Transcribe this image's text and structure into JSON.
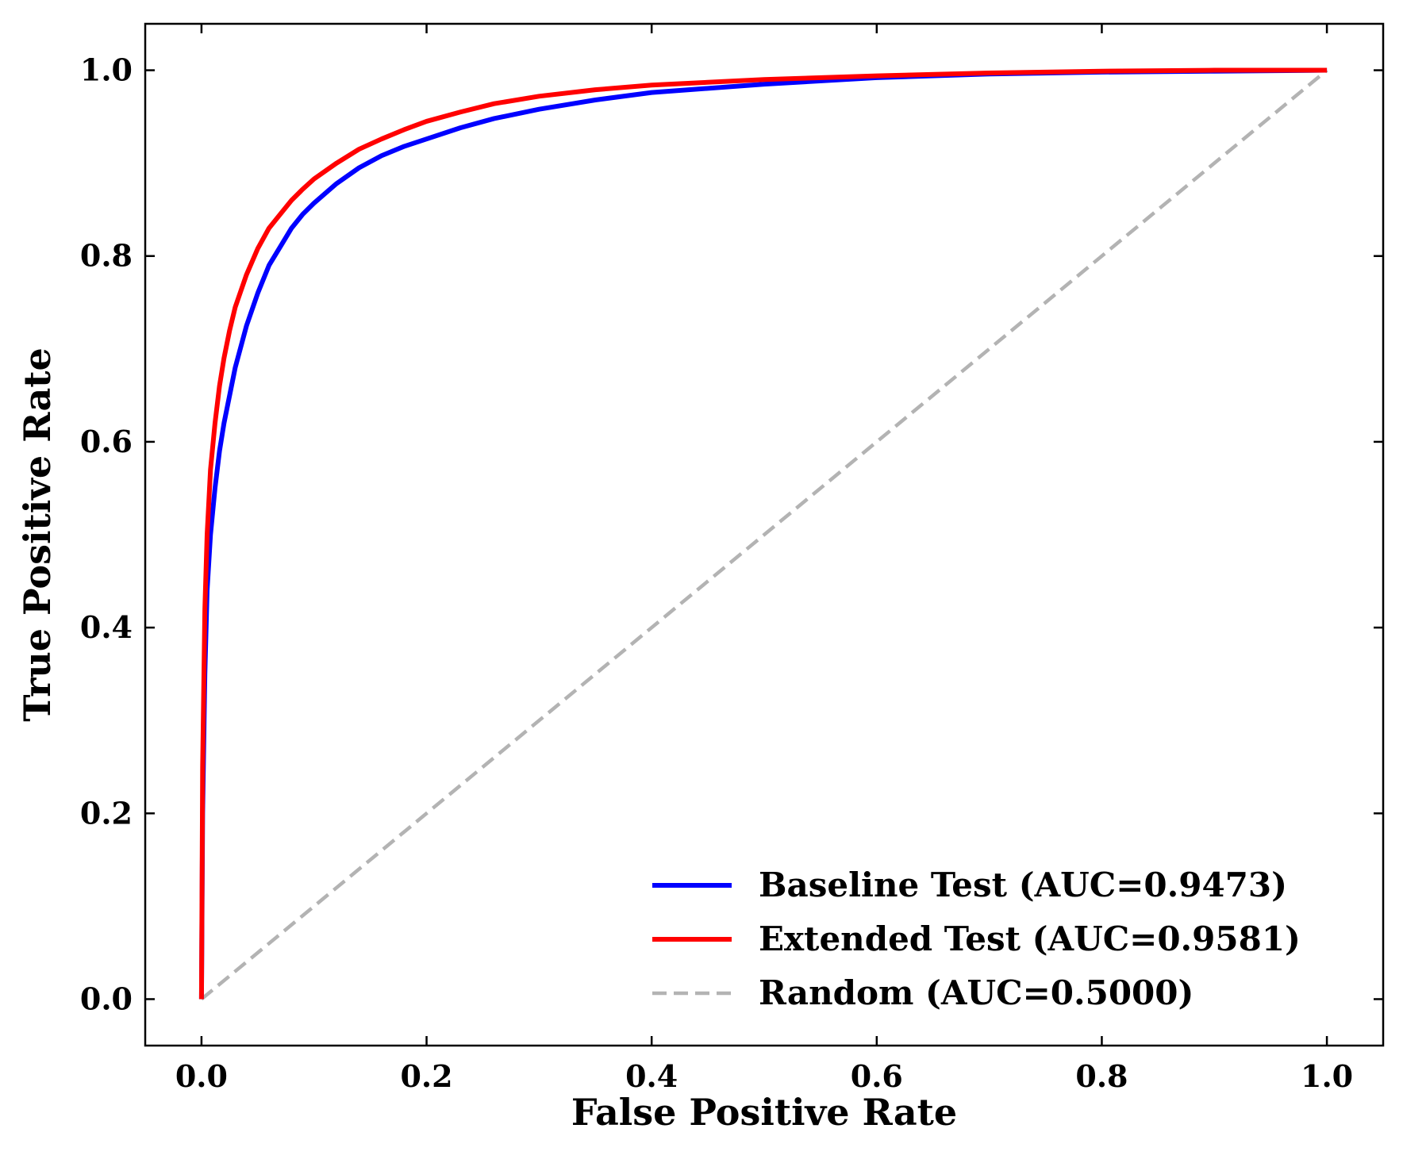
{
  "chart_data": {
    "type": "line",
    "title": "",
    "xlabel": "False Positive Rate",
    "ylabel": "True Positive Rate",
    "xlim": [
      -0.05,
      1.05
    ],
    "ylim": [
      -0.05,
      1.05
    ],
    "xticks": [
      0.0,
      0.2,
      0.4,
      0.6,
      0.8,
      1.0
    ],
    "yticks": [
      0.0,
      0.2,
      0.4,
      0.6,
      0.8,
      1.0
    ],
    "xtick_labels": [
      "0.0",
      "0.2",
      "0.4",
      "0.6",
      "0.8",
      "1.0"
    ],
    "ytick_labels": [
      "0.0",
      "0.2",
      "0.4",
      "0.6",
      "0.8",
      "1.0"
    ],
    "grid": false,
    "legend_position": "lower-right",
    "series": [
      {
        "name": "Baseline Test (AUC=0.9473)",
        "color": "#0000ff",
        "style": "solid",
        "x": [
          0.0,
          0.001,
          0.003,
          0.005,
          0.008,
          0.012,
          0.016,
          0.02,
          0.025,
          0.03,
          0.04,
          0.05,
          0.06,
          0.07,
          0.08,
          0.09,
          0.1,
          0.12,
          0.14,
          0.16,
          0.18,
          0.2,
          0.23,
          0.26,
          0.3,
          0.35,
          0.4,
          0.5,
          0.6,
          0.7,
          0.8,
          0.9,
          1.0
        ],
        "y": [
          0.0,
          0.2,
          0.35,
          0.44,
          0.5,
          0.55,
          0.59,
          0.62,
          0.65,
          0.68,
          0.725,
          0.76,
          0.79,
          0.81,
          0.83,
          0.845,
          0.857,
          0.878,
          0.895,
          0.908,
          0.918,
          0.926,
          0.938,
          0.948,
          0.958,
          0.968,
          0.976,
          0.985,
          0.992,
          0.996,
          0.998,
          0.999,
          1.0
        ]
      },
      {
        "name": "Extended Test (AUC=0.9581)",
        "color": "#ff0000",
        "style": "solid",
        "x": [
          0.0,
          0.001,
          0.003,
          0.005,
          0.008,
          0.012,
          0.016,
          0.02,
          0.025,
          0.03,
          0.04,
          0.05,
          0.06,
          0.07,
          0.08,
          0.09,
          0.1,
          0.12,
          0.14,
          0.16,
          0.18,
          0.2,
          0.23,
          0.26,
          0.3,
          0.35,
          0.4,
          0.5,
          0.6,
          0.7,
          0.8,
          0.9,
          1.0
        ],
        "y": [
          0.0,
          0.25,
          0.42,
          0.5,
          0.57,
          0.62,
          0.66,
          0.69,
          0.72,
          0.745,
          0.78,
          0.808,
          0.83,
          0.845,
          0.86,
          0.872,
          0.883,
          0.9,
          0.915,
          0.926,
          0.936,
          0.945,
          0.955,
          0.964,
          0.972,
          0.979,
          0.984,
          0.99,
          0.994,
          0.997,
          0.999,
          1.0,
          1.0
        ]
      },
      {
        "name": "Random (AUC=0.5000)",
        "color": "#b3b3b3",
        "style": "dashed",
        "x": [
          0.0,
          1.0
        ],
        "y": [
          0.0,
          1.0
        ]
      }
    ]
  }
}
